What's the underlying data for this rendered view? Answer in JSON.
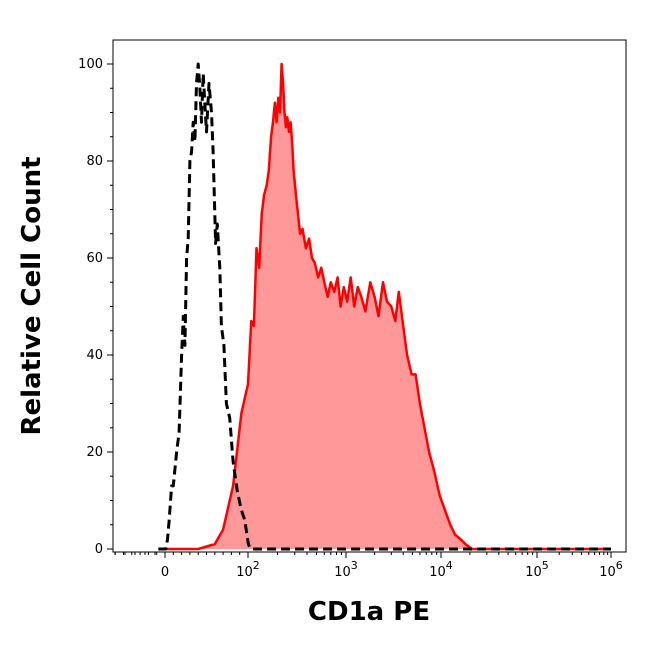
{
  "chart_data": {
    "type": "area",
    "xlabel": "CD1a PE",
    "ylabel": "Relative Cell Count",
    "x_scale": "biexponential",
    "ylim": [
      0,
      100
    ],
    "y_ticks": [
      {
        "value": 0,
        "label": "0"
      },
      {
        "value": 20,
        "label": "20"
      },
      {
        "value": 40,
        "label": "40"
      },
      {
        "value": 60,
        "label": "60"
      },
      {
        "value": 80,
        "label": "80"
      },
      {
        "value": 100,
        "label": "100"
      }
    ],
    "x_ticks": [
      {
        "value": 0,
        "base": "0",
        "exp": ""
      },
      {
        "value": 100,
        "base": "10",
        "exp": "2"
      },
      {
        "value": 1000,
        "base": "10",
        "exp": "3"
      },
      {
        "value": 10000,
        "base": "10",
        "exp": "4"
      },
      {
        "value": 100000,
        "base": "10",
        "exp": "5"
      },
      {
        "value": 1000000,
        "base": "10",
        "exp": "6"
      }
    ],
    "series": [
      {
        "style": "dashed",
        "color": "#000000",
        "fill": "none",
        "points": [
          [
            -8,
            0
          ],
          [
            -5,
            0
          ],
          [
            -3,
            0
          ],
          [
            -1,
            0
          ],
          [
            1,
            0
          ],
          [
            3,
            2
          ],
          [
            5,
            6
          ],
          [
            8,
            13
          ],
          [
            10,
            13
          ],
          [
            14,
            20
          ],
          [
            17,
            24
          ],
          [
            20,
            40
          ],
          [
            22,
            48
          ],
          [
            24,
            42
          ],
          [
            26,
            60
          ],
          [
            28,
            64
          ],
          [
            30,
            80
          ],
          [
            32,
            82
          ],
          [
            34,
            88
          ],
          [
            36,
            84
          ],
          [
            38,
            96
          ],
          [
            40,
            100
          ],
          [
            42,
            95
          ],
          [
            44,
            88
          ],
          [
            46,
            98
          ],
          [
            48,
            92
          ],
          [
            50,
            86
          ],
          [
            53,
            96
          ],
          [
            56,
            90
          ],
          [
            58,
            82
          ],
          [
            61,
            63
          ],
          [
            63,
            67
          ],
          [
            66,
            58
          ],
          [
            68,
            46
          ],
          [
            71,
            42
          ],
          [
            74,
            30
          ],
          [
            78,
            27
          ],
          [
            82,
            18
          ],
          [
            87,
            12
          ],
          [
            92,
            8
          ],
          [
            96,
            6
          ],
          [
            101,
            1
          ],
          [
            106,
            0
          ],
          [
            115,
            0
          ],
          [
            200,
            0
          ],
          [
            1000,
            0
          ],
          [
            10000,
            0
          ],
          [
            1000000,
            0
          ]
        ]
      },
      {
        "style": "solid",
        "color": "#ff0000",
        "fill": "#ff9999",
        "points": [
          [
            -8,
            0
          ],
          [
            -3,
            0
          ],
          [
            0,
            0
          ],
          [
            20,
            0
          ],
          [
            40,
            0
          ],
          [
            60,
            1
          ],
          [
            70,
            4
          ],
          [
            82,
            13
          ],
          [
            92,
            28
          ],
          [
            100,
            34
          ],
          [
            108,
            47
          ],
          [
            115,
            46
          ],
          [
            122,
            62
          ],
          [
            130,
            58
          ],
          [
            138,
            69
          ],
          [
            146,
            73
          ],
          [
            155,
            75
          ],
          [
            163,
            78
          ],
          [
            172,
            85
          ],
          [
            180,
            88
          ],
          [
            188,
            92
          ],
          [
            196,
            88
          ],
          [
            204,
            93
          ],
          [
            212,
            90
          ],
          [
            220,
            100
          ],
          [
            228,
            96
          ],
          [
            236,
            90
          ],
          [
            244,
            87
          ],
          [
            252,
            89
          ],
          [
            262,
            86
          ],
          [
            272,
            88
          ],
          [
            282,
            84
          ],
          [
            292,
            78
          ],
          [
            305,
            74
          ],
          [
            320,
            70
          ],
          [
            340,
            65
          ],
          [
            360,
            66
          ],
          [
            390,
            62
          ],
          [
            420,
            64
          ],
          [
            450,
            60
          ],
          [
            480,
            59
          ],
          [
            520,
            56
          ],
          [
            560,
            58
          ],
          [
            600,
            55
          ],
          [
            650,
            52
          ],
          [
            700,
            55
          ],
          [
            760,
            53
          ],
          [
            820,
            56
          ],
          [
            880,
            50
          ],
          [
            950,
            54
          ],
          [
            1030,
            51
          ],
          [
            1120,
            56
          ],
          [
            1220,
            50
          ],
          [
            1330,
            54
          ],
          [
            1450,
            52
          ],
          [
            1600,
            49
          ],
          [
            1800,
            55
          ],
          [
            2000,
            52
          ],
          [
            2200,
            48
          ],
          [
            2450,
            55
          ],
          [
            2700,
            51
          ],
          [
            3000,
            50
          ],
          [
            3300,
            47
          ],
          [
            3600,
            53
          ],
          [
            4000,
            46
          ],
          [
            4400,
            40
          ],
          [
            4900,
            36
          ],
          [
            5400,
            36
          ],
          [
            6000,
            30
          ],
          [
            6700,
            25
          ],
          [
            7500,
            20
          ],
          [
            8500,
            16
          ],
          [
            9700,
            11
          ],
          [
            11000,
            8
          ],
          [
            12500,
            5
          ],
          [
            14000,
            3
          ],
          [
            16000,
            2
          ],
          [
            18000,
            1
          ],
          [
            21000,
            0
          ],
          [
            30000,
            0
          ],
          [
            100000,
            0
          ],
          [
            1000000,
            0
          ]
        ]
      }
    ]
  }
}
